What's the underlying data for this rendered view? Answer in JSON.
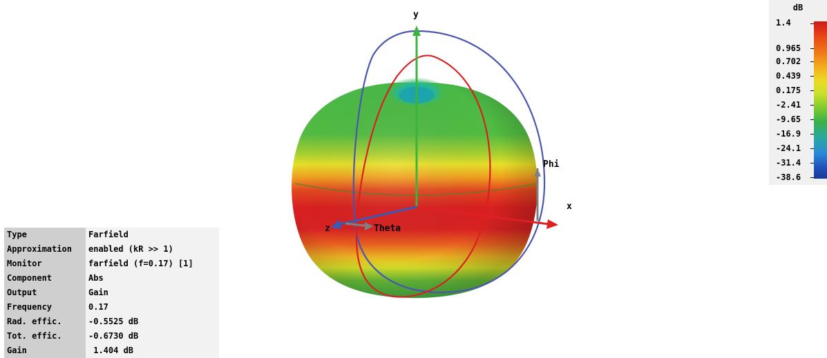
{
  "axes": {
    "x_label": "x",
    "y_label": "y",
    "z_label": "z",
    "phi_label": "Phi",
    "theta_label": "Theta"
  },
  "legend": {
    "unit": "dB",
    "ticks": [
      "1.4",
      "0.965",
      "0.702",
      "0.439",
      "0.175",
      "-2.41",
      "-9.65",
      "-16.9",
      "-24.1",
      "-31.4",
      "-38.6"
    ]
  },
  "info": [
    {
      "key": "Type",
      "value": "Farfield"
    },
    {
      "key": "Approximation",
      "value": "enabled (kR >> 1)"
    },
    {
      "key": "Monitor",
      "value": "farfield (f=0.17) [1]"
    },
    {
      "key": "Component",
      "value": "Abs"
    },
    {
      "key": "Output",
      "value": "Gain"
    },
    {
      "key": "Frequency",
      "value": "0.17"
    },
    {
      "key": "Rad. effic.",
      "value": "-0.5525 dB"
    },
    {
      "key": "Tot. effic.",
      "value": "-0.6730 dB"
    },
    {
      "key": "Gain",
      "value": " 1.404 dB"
    }
  ],
  "colors": {
    "max": "#d82020",
    "mid": "#e8e028",
    "low": "#48b848",
    "phi_circle": "#4a55b0",
    "theta_circle": "#d82020",
    "x_axis": "#e02020",
    "y_axis": "#3cb43c",
    "z_axis": "#3a5ab8"
  }
}
